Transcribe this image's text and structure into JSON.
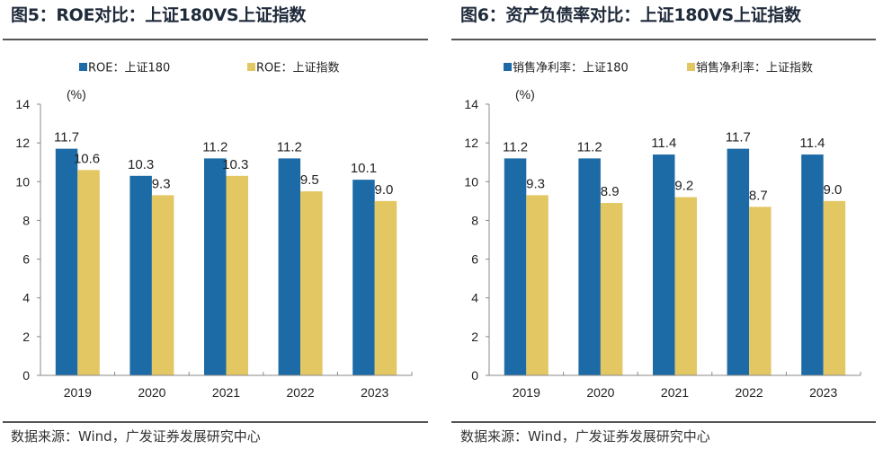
{
  "left": {
    "title": "图5：ROE对比：上证180VS上证指数",
    "source": "数据来源：Wind，广发证券发展研究中心"
  },
  "right": {
    "title": "图6：资产负债率对比：上证180VS上证指数",
    "source": "数据来源：Wind，广发证券发展研究中心"
  },
  "chart_data": [
    {
      "type": "bar",
      "title": "图5：ROE对比：上证180VS上证指数",
      "unit_label": "(%)",
      "categories": [
        "2019",
        "2020",
        "2021",
        "2022",
        "2023"
      ],
      "series": [
        {
          "name": "ROE：上证180",
          "color": "#1c6aa6",
          "values": [
            11.7,
            10.3,
            11.2,
            11.2,
            10.1
          ],
          "labels": [
            "11.7",
            "10.3",
            "11.2",
            "11.2",
            "10.1"
          ]
        },
        {
          "name": "ROE：上证指数",
          "color": "#e3c763",
          "values": [
            10.6,
            9.3,
            10.3,
            9.5,
            9.0
          ],
          "labels": [
            "10.6",
            "9.3",
            "10.3",
            "9.5",
            "9.0"
          ]
        }
      ],
      "ylim": [
        0,
        14
      ],
      "yticks": [
        "0",
        "2",
        "4",
        "6",
        "8",
        "10",
        "12",
        "14"
      ],
      "legend": "top",
      "grid": false
    },
    {
      "type": "bar",
      "title": "图6：资产负债率对比：上证180VS上证指数",
      "unit_label": "(%)",
      "categories": [
        "2019",
        "2020",
        "2021",
        "2022",
        "2023"
      ],
      "series": [
        {
          "name": "销售净利率：上证180",
          "color": "#1c6aa6",
          "values": [
            11.2,
            11.2,
            11.4,
            11.7,
            11.4
          ],
          "labels": [
            "11.2",
            "11.2",
            "11.4",
            "11.7",
            "11.4"
          ]
        },
        {
          "name": "销售净利率：上证指数",
          "color": "#e3c763",
          "values": [
            9.3,
            8.9,
            9.2,
            8.7,
            9.0
          ],
          "labels": [
            "9.3",
            "8.9",
            "9.2",
            "8.7",
            "9.0"
          ]
        }
      ],
      "ylim": [
        0,
        14
      ],
      "yticks": [
        "0",
        "2",
        "4",
        "6",
        "8",
        "10",
        "12",
        "14"
      ],
      "legend": "top",
      "grid": false
    }
  ]
}
